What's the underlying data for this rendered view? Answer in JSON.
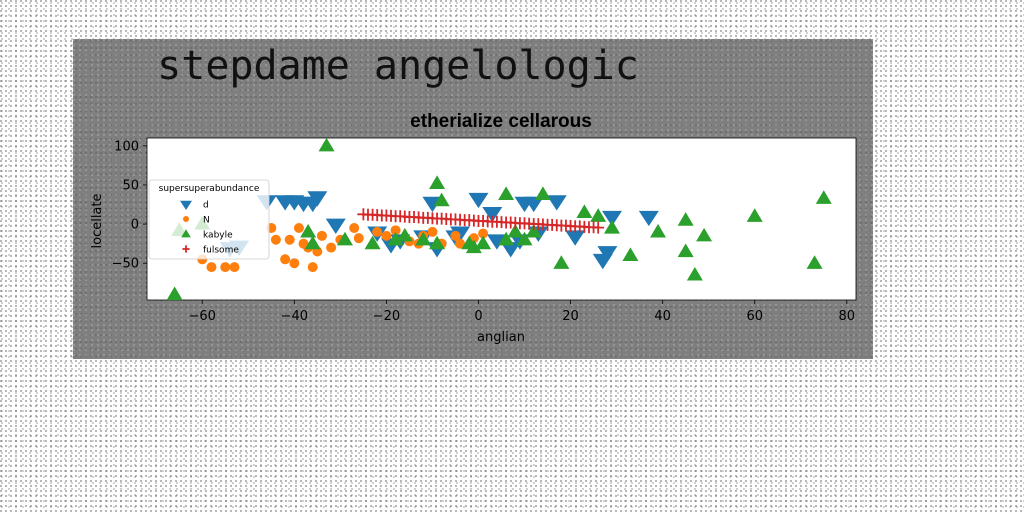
{
  "figure": {
    "suptitle": "stepdame angelologic"
  },
  "chart_data": {
    "type": "scatter",
    "title": "etherialize cellarous",
    "xlabel": "anglian",
    "ylabel": "locellate",
    "xlim": [
      -72,
      82
    ],
    "ylim": [
      -97,
      110
    ],
    "xticks": [
      -60,
      -40,
      -20,
      0,
      20,
      40,
      60,
      80
    ],
    "yticks": [
      -50,
      0,
      50,
      100
    ],
    "grid": false,
    "legend": {
      "title": "supersuperabundance",
      "position": "upper-left"
    },
    "series": [
      {
        "name": "d",
        "marker": "triangle-down",
        "color": "#1f77b4",
        "points": [
          [
            -54,
            -30
          ],
          [
            -52,
            -28
          ],
          [
            -46,
            30
          ],
          [
            -42,
            30
          ],
          [
            -40,
            30
          ],
          [
            -38,
            28
          ],
          [
            -36,
            28
          ],
          [
            -35,
            35
          ],
          [
            -31,
            0
          ],
          [
            -22,
            -10
          ],
          [
            -19,
            -25
          ],
          [
            -17,
            -20
          ],
          [
            -12,
            -15
          ],
          [
            -10,
            28
          ],
          [
            -9,
            -30
          ],
          [
            -5,
            -15
          ],
          [
            -4,
            -10
          ],
          [
            0,
            33
          ],
          [
            3,
            15
          ],
          [
            4,
            -20
          ],
          [
            7,
            -30
          ],
          [
            9,
            -20
          ],
          [
            10,
            28
          ],
          [
            12,
            28
          ],
          [
            13,
            -10
          ],
          [
            17,
            30
          ],
          [
            21,
            -15
          ],
          [
            27,
            -45
          ],
          [
            28,
            -35
          ],
          [
            29,
            10
          ],
          [
            37,
            10
          ]
        ]
      },
      {
        "name": "N",
        "marker": "circle",
        "color": "#ff7f0e",
        "points": [
          [
            -60,
            -45
          ],
          [
            -58,
            -55
          ],
          [
            -55,
            -55
          ],
          [
            -53,
            -55
          ],
          [
            -45,
            -5
          ],
          [
            -44,
            -20
          ],
          [
            -42,
            -45
          ],
          [
            -41,
            -20
          ],
          [
            -40,
            -50
          ],
          [
            -39,
            -5
          ],
          [
            -38,
            -25
          ],
          [
            -37,
            -30
          ],
          [
            -36,
            -55
          ],
          [
            -35,
            -35
          ],
          [
            -34,
            -15
          ],
          [
            -32,
            -30
          ],
          [
            -30,
            -20
          ],
          [
            -27,
            -5
          ],
          [
            -26,
            -18
          ],
          [
            -22,
            -10
          ],
          [
            -20,
            -15
          ],
          [
            -18,
            -8
          ],
          [
            -15,
            -22
          ],
          [
            -13,
            -25
          ],
          [
            -12,
            -15
          ],
          [
            -10,
            -10
          ],
          [
            -8,
            -25
          ],
          [
            -5,
            -15
          ],
          [
            -4,
            -25
          ],
          [
            -1,
            -18
          ],
          [
            1,
            -12
          ]
        ]
      },
      {
        "name": "kabyle",
        "marker": "triangle-up",
        "color": "#2ca02c",
        "points": [
          [
            -66,
            -90
          ],
          [
            -65,
            -8
          ],
          [
            -60,
            0
          ],
          [
            -37,
            -10
          ],
          [
            -36,
            -25
          ],
          [
            -33,
            100
          ],
          [
            -29,
            -20
          ],
          [
            -23,
            -25
          ],
          [
            -18,
            -20
          ],
          [
            -16,
            -15
          ],
          [
            -12,
            -20
          ],
          [
            -9,
            -25
          ],
          [
            -9,
            52
          ],
          [
            -8,
            30
          ],
          [
            -2,
            -25
          ],
          [
            -1,
            -30
          ],
          [
            1,
            -25
          ],
          [
            6,
            -20
          ],
          [
            6,
            38
          ],
          [
            8,
            -10
          ],
          [
            10,
            -20
          ],
          [
            12,
            -10
          ],
          [
            14,
            38
          ],
          [
            18,
            -50
          ],
          [
            23,
            15
          ],
          [
            26,
            10
          ],
          [
            29,
            -5
          ],
          [
            33,
            -40
          ],
          [
            39,
            -10
          ],
          [
            45,
            -35
          ],
          [
            45,
            5
          ],
          [
            47,
            -65
          ],
          [
            49,
            -15
          ],
          [
            60,
            10
          ],
          [
            73,
            -50
          ],
          [
            75,
            33
          ]
        ]
      },
      {
        "name": "fulsome",
        "marker": "plus",
        "color": "#d62728",
        "points": [
          [
            -25,
            12.5
          ],
          [
            -24,
            12
          ],
          [
            -23,
            12
          ],
          [
            -22,
            11.5
          ],
          [
            -21,
            11
          ],
          [
            -20,
            11
          ],
          [
            -19,
            10.5
          ],
          [
            -18,
            10
          ],
          [
            -17,
            10
          ],
          [
            -16,
            9.5
          ],
          [
            -15,
            9
          ],
          [
            -14,
            9
          ],
          [
            -13,
            8.5
          ],
          [
            -12,
            8
          ],
          [
            -11,
            8
          ],
          [
            -10,
            7.5
          ],
          [
            -9,
            7
          ],
          [
            -8,
            7
          ],
          [
            -7,
            6.5
          ],
          [
            -6,
            6
          ],
          [
            -5,
            6
          ],
          [
            -4,
            5.5
          ],
          [
            -3,
            5
          ],
          [
            -2,
            5
          ],
          [
            -1,
            4.5
          ],
          [
            0,
            4
          ],
          [
            1,
            4
          ],
          [
            2,
            3.5
          ],
          [
            3,
            3
          ],
          [
            4,
            3
          ],
          [
            5,
            2.5
          ],
          [
            6,
            2
          ],
          [
            7,
            2
          ],
          [
            8,
            1.5
          ],
          [
            9,
            1
          ],
          [
            10,
            1
          ],
          [
            11,
            0.5
          ],
          [
            12,
            0
          ],
          [
            13,
            0
          ],
          [
            14,
            -0.5
          ],
          [
            15,
            -1
          ],
          [
            16,
            -1
          ],
          [
            17,
            -1.5
          ],
          [
            18,
            -2
          ],
          [
            19,
            -2
          ],
          [
            20,
            -2.5
          ],
          [
            21,
            -3
          ],
          [
            22,
            -3
          ],
          [
            23,
            -3.5
          ],
          [
            24,
            -4
          ],
          [
            25,
            -4
          ],
          [
            26,
            -4.5
          ]
        ]
      }
    ]
  }
}
